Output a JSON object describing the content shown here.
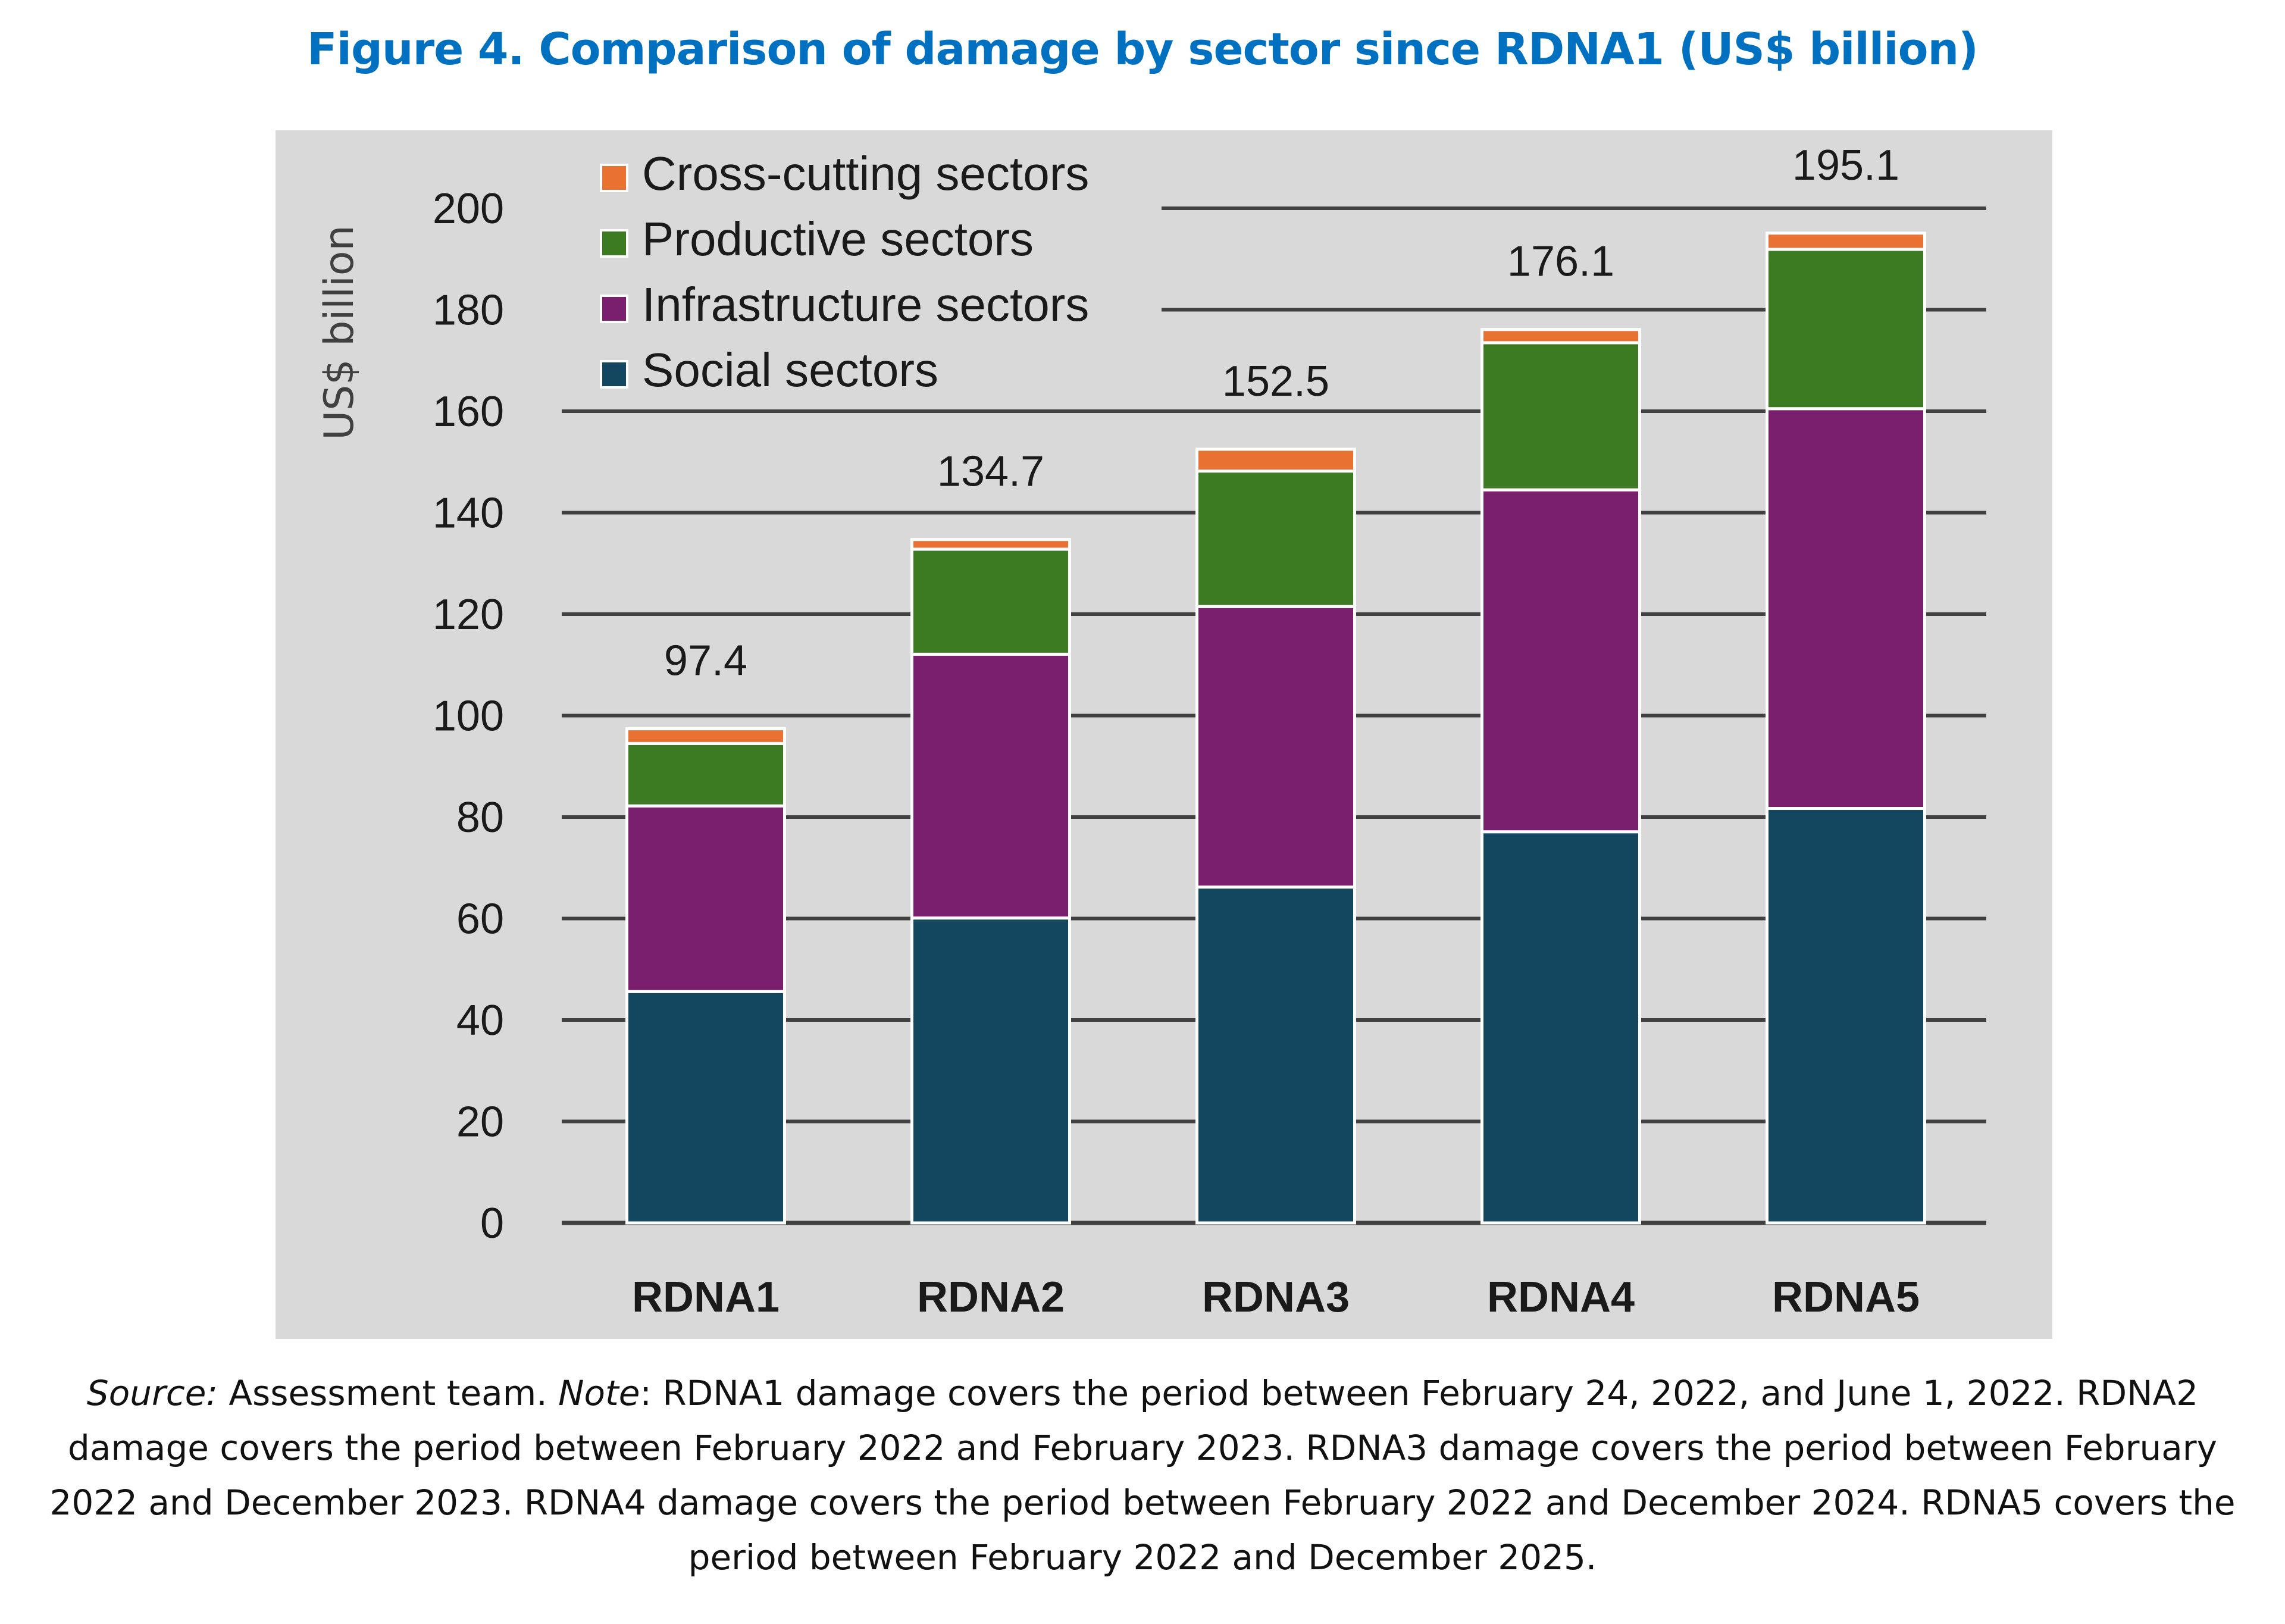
{
  "figure": {
    "title": "Figure 4. Comparison of damage by sector since RDNA1 (US$ billion)",
    "caption": {
      "source_label": "Source:",
      "source_text": " Assessment team. ",
      "note_label": "Note",
      "note_text": ": RDNA1 damage covers the period between February 24, 2022, and June 1, 2022. RDNA2 damage covers the period between February 2022 and February 2023. RDNA3 damage covers the period between February 2022 and December 2023. RDNA4 damage covers the period between February 2022 and December 2024. RDNA5 covers the period between February 2022 and December 2025."
    }
  },
  "colors": {
    "social": "#134760",
    "infrastructure": "#7a1f6e",
    "productive": "#3d7b22",
    "cross_cutting": "#e97132",
    "panel_bg": "#d9d9d9",
    "gridline": "#404040",
    "title": "#0070c0"
  },
  "chart_data": {
    "type": "bar",
    "stacked": true,
    "title": "Figure 4. Comparison of damage by sector since RDNA1 (US$ billion)",
    "xlabel": "",
    "ylabel": "US$ billion",
    "ylim": [
      0,
      200
    ],
    "yticks": [
      0,
      20,
      40,
      60,
      80,
      100,
      120,
      140,
      160,
      180,
      200
    ],
    "grid": true,
    "legend_position": "top-left",
    "categories": [
      "RDNA1",
      "RDNA2",
      "RDNA3",
      "RDNA4",
      "RDNA5"
    ],
    "series": [
      {
        "name": "Social sectors",
        "key": "social",
        "values": [
          45.6,
          60.1,
          66.2,
          77.1,
          81.7
        ]
      },
      {
        "name": "Infrastructure sectors",
        "key": "infrastructure",
        "values": [
          36.6,
          52.0,
          55.3,
          67.4,
          78.8
        ]
      },
      {
        "name": "Productive sectors",
        "key": "productive",
        "values": [
          12.3,
          20.7,
          26.7,
          29.0,
          31.4
        ]
      },
      {
        "name": "Cross-cutting sectors",
        "key": "cross_cutting",
        "values": [
          2.9,
          1.9,
          4.3,
          2.6,
          3.2
        ]
      }
    ],
    "totals": [
      97.4,
      134.7,
      152.5,
      176.1,
      195.1
    ],
    "total_labels": [
      "97.4",
      "134.7",
      "152.5",
      "176.1",
      "195.1"
    ],
    "legend": [
      "Cross-cutting sectors",
      "Productive sectors",
      "Infrastructure sectors",
      "Social sectors"
    ]
  }
}
